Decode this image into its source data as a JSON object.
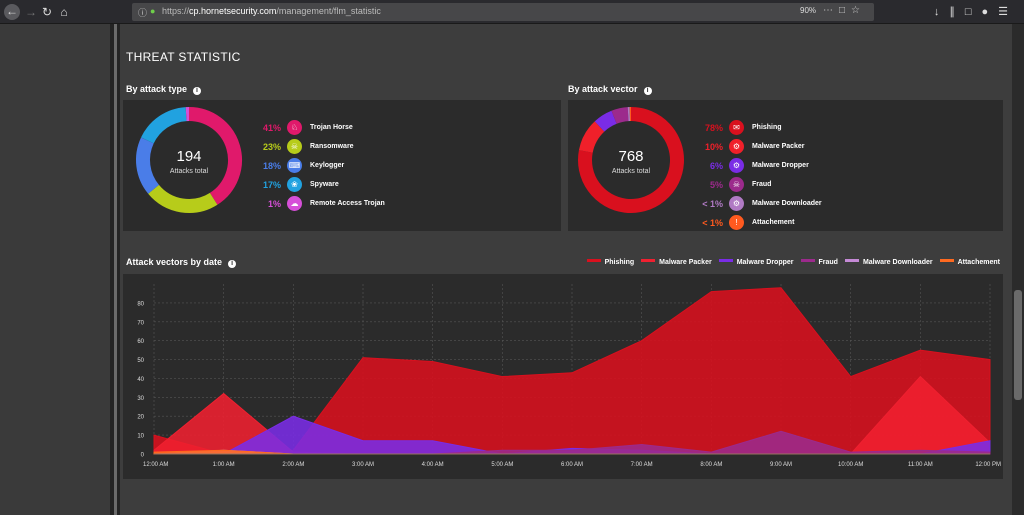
{
  "browser": {
    "url_prefix": "https://",
    "url_host": "cp.hornetsecurity.com",
    "url_path": "/management/flm_statistic",
    "zoom": "90%"
  },
  "page": {
    "title": "THREAT STATISTIC"
  },
  "attack_type": {
    "title": "By attack type",
    "total": "194",
    "total_label": "Attacks total",
    "items": [
      {
        "pct": "41%",
        "label": "Trojan Horse",
        "value": 41,
        "color": "#e0196b"
      },
      {
        "pct": "23%",
        "label": "Ransomware",
        "value": 23,
        "color": "#b7cc1a"
      },
      {
        "pct": "18%",
        "label": "Keylogger",
        "value": 18,
        "color": "#4a7de8"
      },
      {
        "pct": "17%",
        "label": "Spyware",
        "value": 17,
        "color": "#21a2e0"
      },
      {
        "pct": "1%",
        "label": "Remote Access Trojan",
        "value": 1,
        "color": "#d64fd8"
      }
    ]
  },
  "attack_vector": {
    "title": "By attack vector",
    "total": "768",
    "total_label": "Attacks total",
    "items": [
      {
        "pct": "78%",
        "label": "Phishing",
        "value": 78,
        "color": "#d9101e"
      },
      {
        "pct": "10%",
        "label": "Malware Packer",
        "value": 10,
        "color": "#f0202a"
      },
      {
        "pct": "6%",
        "label": "Malware Dropper",
        "value": 6,
        "color": "#7a2ce6"
      },
      {
        "pct": "5%",
        "label": "Fraud",
        "value": 5,
        "color": "#9c2a8c"
      },
      {
        "pct": "< 1%",
        "label": "Malware Downloader",
        "value": 0.6,
        "color": "#b07ac4"
      },
      {
        "pct": "< 1%",
        "label": "Attachement",
        "value": 0.4,
        "color": "#ff5a1f"
      }
    ]
  },
  "by_date": {
    "title": "Attack vectors by date"
  },
  "chart_data": {
    "type": "area",
    "title": "Attack vectors by date",
    "x": [
      "12:00 AM",
      "1:00 AM",
      "2:00 AM",
      "3:00 AM",
      "4:00 AM",
      "5:00 AM",
      "6:00 AM",
      "7:00 AM",
      "8:00 AM",
      "9:00 AM",
      "10:00 AM",
      "11:00 AM",
      "12:00 PM"
    ],
    "ylim": [
      0,
      90
    ],
    "yticks": [
      0,
      10,
      20,
      30,
      40,
      50,
      60,
      70,
      80
    ],
    "grid": true,
    "legend_position": "top-right",
    "series": [
      {
        "name": "Phishing",
        "color": "#d9101e",
        "values": [
          10,
          0,
          2,
          51,
          49,
          41,
          43,
          60,
          86,
          88,
          41,
          55,
          50
        ]
      },
      {
        "name": "Malware Packer",
        "color": "#f02030",
        "values": [
          2,
          32,
          1,
          0,
          0,
          0,
          0,
          0,
          0,
          0,
          0,
          41,
          6
        ]
      },
      {
        "name": "Malware Dropper",
        "color": "#7a2ce6",
        "values": [
          0,
          0,
          20,
          7,
          7,
          0,
          3,
          2,
          0,
          0,
          0,
          0,
          7
        ]
      },
      {
        "name": "Fraud",
        "color": "#9c2a8c",
        "values": [
          0,
          0,
          0,
          0,
          0,
          2,
          2,
          5,
          1,
          12,
          1,
          2,
          1
        ]
      },
      {
        "name": "Malware Downloader",
        "color": "#c58ad6",
        "values": [
          0,
          2,
          0,
          0,
          0,
          0,
          0,
          0,
          0,
          0,
          0,
          0,
          0
        ]
      },
      {
        "name": "Attachement",
        "color": "#ff6a20",
        "values": [
          1,
          2,
          0,
          0,
          0,
          0,
          0,
          0,
          0,
          0,
          0,
          0,
          0
        ]
      }
    ]
  }
}
